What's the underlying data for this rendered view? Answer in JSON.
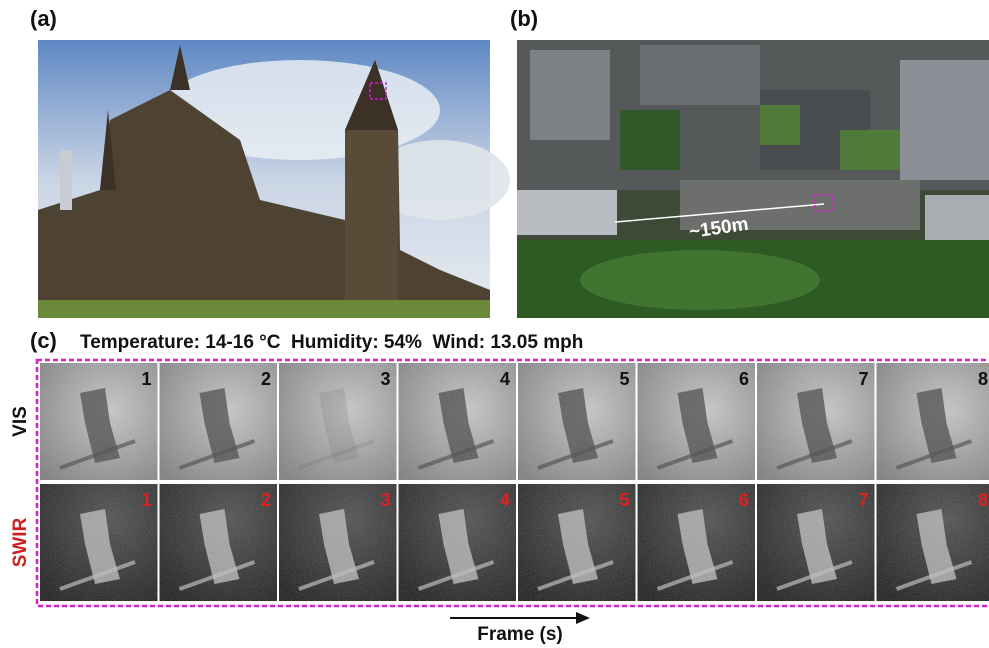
{
  "panels": {
    "a": {
      "label": "(a)"
    },
    "b": {
      "label": "(b)",
      "annotation": "~150m"
    },
    "c": {
      "label": "(c)",
      "conditions": "Temperature: 14-16 °C  Humidity: 54%  Wind: 13.05 mph",
      "rows": [
        {
          "label": "VIS",
          "frames": [
            "1",
            "2",
            "3",
            "4",
            "5",
            "6",
            "7",
            "8"
          ]
        },
        {
          "label": "SWIR",
          "frames": [
            "1",
            "2",
            "3",
            "4",
            "5",
            "6",
            "7",
            "8"
          ]
        }
      ],
      "x_axis": "Frame (s)"
    }
  }
}
